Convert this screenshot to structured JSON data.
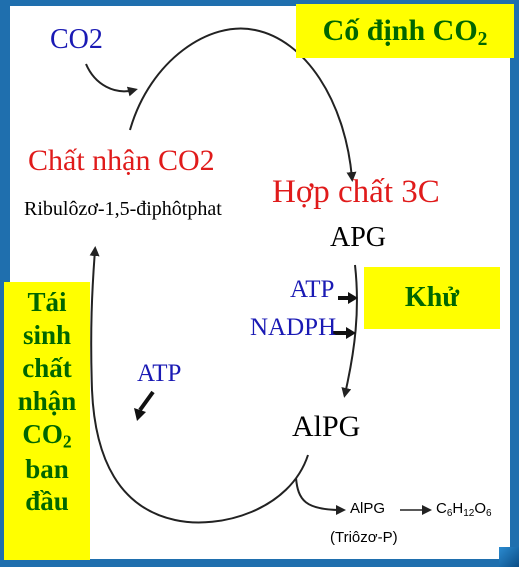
{
  "boxes": {
    "fixation": {
      "text": "Cố định CO",
      "sub": "2"
    },
    "reduction": "Khử",
    "regeneration": {
      "lines": [
        "Tái",
        "sinh",
        "chất",
        "nhận"
      ],
      "co2": "CO",
      "co2_sub": "2",
      "lines2": [
        "ban",
        "đầu"
      ]
    }
  },
  "labels": {
    "co2_input": "CO2",
    "acceptor": "Chất nhận CO2",
    "rubp": "Ribulôzơ-1,5-điphôtphat",
    "compound_3c": "Hợp chất 3C",
    "apg": "APG",
    "atp_reduction": "ATP",
    "nadph": "NADPH",
    "atp_regeneration": "ATP",
    "alpg": "AlPG",
    "alpg_output": "AlPG",
    "product": {
      "c": "C",
      "c_sub": "6",
      "h": "H",
      "h_sub": "12",
      "o": "O",
      "o_sub": "6"
    },
    "triose": "(Triôzơ-P)"
  },
  "colors": {
    "box_fill": "#ffff00",
    "box_text": "#006600",
    "blue_text": "#1a1ab4",
    "red_text": "#e01b1b",
    "background": "#1f6fae"
  }
}
